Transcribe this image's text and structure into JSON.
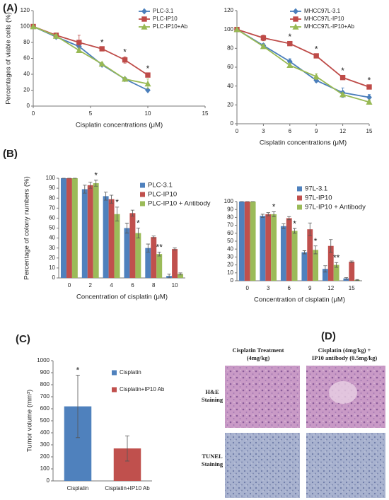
{
  "panel_labels": [
    "(A)",
    "(B)",
    "(C)",
    "(D)"
  ],
  "chart_data": [
    {
      "type": "line",
      "x_label": "Cisplatin concentrations (μM)",
      "y_label": "Percentages of viable cells (%)",
      "x": [
        0,
        2,
        4,
        6,
        8,
        10
      ],
      "xlim": [
        0,
        15
      ],
      "xticks": [
        0,
        5,
        10,
        15
      ],
      "ylim": [
        0,
        120
      ],
      "yticks": [
        0,
        20,
        40,
        60,
        80,
        100,
        120
      ],
      "grid": false,
      "legend": "top-right",
      "series": [
        {
          "name": "PLC-3.1",
          "color": "#4a7ebb",
          "marker": "diamond",
          "values": [
            100,
            87,
            75,
            52,
            34,
            20
          ],
          "errors": [
            0,
            2,
            3,
            2,
            2,
            1
          ]
        },
        {
          "name": "PLC-IP10",
          "color": "#be4b48",
          "marker": "square",
          "values": [
            100,
            89,
            80,
            72,
            58,
            39
          ],
          "errors": [
            0,
            3,
            9,
            2,
            4,
            2
          ],
          "significance": [
            null,
            null,
            null,
            "*",
            "*",
            "*"
          ]
        },
        {
          "name": "PLC-IP10+Ab",
          "color": "#98b954",
          "marker": "triangle",
          "values": [
            100,
            88,
            70,
            53,
            34,
            28
          ],
          "errors": [
            0,
            2,
            3,
            2,
            2,
            6
          ]
        }
      ]
    },
    {
      "type": "line",
      "x_label": "Cisplatin concentrations (μM)",
      "x": [
        0,
        3,
        6,
        9,
        12,
        15
      ],
      "xlim": [
        0,
        15
      ],
      "xticks": [
        0,
        3,
        6,
        9,
        12,
        15
      ],
      "ylim": [
        0,
        120
      ],
      "yticks": [
        0,
        20,
        40,
        60,
        80,
        100,
        120
      ],
      "grid": false,
      "legend": "top-right",
      "series": [
        {
          "name": "MHCC97L-3.1",
          "color": "#4a7ebb",
          "marker": "diamond",
          "values": [
            100,
            83,
            66,
            46,
            33,
            28
          ],
          "errors": [
            0,
            2,
            3,
            2,
            5,
            3
          ]
        },
        {
          "name": "MHCC97L-IP10",
          "color": "#be4b48",
          "marker": "square",
          "values": [
            100,
            91,
            85,
            72,
            49,
            39
          ],
          "errors": [
            0,
            3,
            2,
            2,
            2,
            2
          ],
          "significance": [
            null,
            null,
            "*",
            "*",
            "*",
            "*"
          ]
        },
        {
          "name": "MHCC97L-IP10+Ab",
          "color": "#98b954",
          "marker": "triangle",
          "values": [
            100,
            82,
            62,
            50,
            31,
            23
          ],
          "errors": [
            0,
            2,
            2,
            3,
            2,
            2
          ]
        }
      ]
    },
    {
      "type": "bar",
      "x_label": "Concentration of cisplatin (μM)",
      "y_label": "Percentage of colony numbers (%)",
      "categories": [
        "0",
        "2",
        "4",
        "6",
        "8",
        "10"
      ],
      "ylim": [
        0,
        100
      ],
      "yticks": [
        0,
        10,
        20,
        30,
        40,
        50,
        60,
        70,
        80,
        90,
        100
      ],
      "grid": false,
      "legend": "right",
      "series": [
        {
          "name": "PLC-3.1",
          "color": "#4f81bd",
          "values": [
            100,
            89,
            82,
            50,
            30,
            2
          ],
          "errors": [
            0,
            4,
            4,
            5,
            4,
            2
          ]
        },
        {
          "name": "PLC-IP10",
          "color": "#c0504d",
          "values": [
            100,
            93,
            79,
            65,
            41,
            29
          ],
          "errors": [
            0,
            3,
            4,
            3,
            1,
            1
          ]
        },
        {
          "name": "PLC-IP10 + Antibody",
          "color": "#9bbb59",
          "values": [
            100,
            95,
            64,
            45,
            24,
            4
          ],
          "errors": [
            0,
            3,
            7,
            5,
            2,
            1
          ],
          "significance": [
            null,
            "*",
            "*",
            "*",
            "**",
            null
          ]
        }
      ]
    },
    {
      "type": "bar",
      "x_label": "Concentration of cisplatin (μM)",
      "categories": [
        "0",
        "3",
        "6",
        "9",
        "12",
        "15"
      ],
      "ylim": [
        0,
        100
      ],
      "yticks": [
        0,
        10,
        20,
        30,
        40,
        50,
        60,
        70,
        80,
        90,
        100
      ],
      "grid": false,
      "legend": "right",
      "series": [
        {
          "name": "97L-3.1",
          "color": "#4f81bd",
          "values": [
            100,
            82,
            69,
            36,
            15,
            3
          ],
          "errors": [
            0,
            2,
            3,
            2,
            4,
            1
          ]
        },
        {
          "name": "97L-IP10",
          "color": "#c0504d",
          "values": [
            100,
            84,
            79,
            65,
            44,
            24
          ],
          "errors": [
            0,
            2,
            2,
            8,
            8,
            1
          ]
        },
        {
          "name": "97L-IP10 + Antibody",
          "color": "#9bbb59",
          "values": [
            100,
            84,
            63,
            39,
            20,
            1
          ],
          "errors": [
            0,
            3,
            3,
            5,
            3,
            0.5
          ],
          "significance": [
            null,
            "*",
            "*",
            "*",
            "**",
            null
          ]
        }
      ]
    },
    {
      "type": "bar",
      "y_label": "Tumor volume (mm³)",
      "categories": [
        "Cisplatin",
        "Cisplatin+IP10 Ab"
      ],
      "ylim": [
        0,
        1000
      ],
      "yticks": [
        0,
        100,
        200,
        300,
        400,
        500,
        600,
        700,
        800,
        900,
        1000
      ],
      "grid": false,
      "legend": "right",
      "series": [
        {
          "name": "Cisplatin",
          "color": "#4f81bd",
          "values": [
            620,
            null
          ],
          "errors": [
            260,
            null
          ],
          "significance": [
            "*",
            null
          ]
        },
        {
          "name": "Cisplatin+IP10 Ab",
          "color": "#c0504d",
          "values": [
            null,
            270
          ],
          "errors": [
            null,
            105
          ]
        }
      ]
    }
  ],
  "panel_d": {
    "columns": [
      [
        "Cisplatin Treatment",
        "(4mg/kg)"
      ],
      [
        "Cisplatin (4mg/kg) +",
        "IP10 antibody (0.5mg/kg)"
      ]
    ],
    "rows": [
      [
        "H&E",
        "Staining"
      ],
      [
        "TUNEL",
        "Staining"
      ]
    ]
  }
}
